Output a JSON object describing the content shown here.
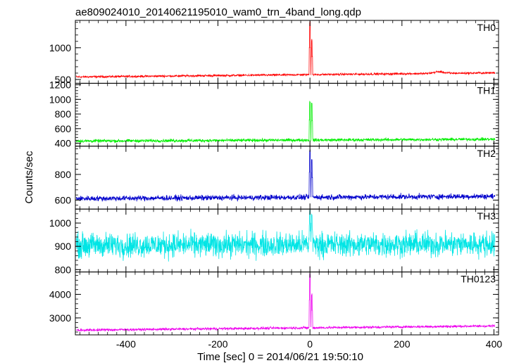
{
  "chart_data": {
    "type": "line",
    "title": "ae809024010_20140621195010_wam0_trn_4band_long.qdp",
    "xlabel": "Time [sec] 0 = 2014/06/21 19:50:10",
    "ylabel": "Counts/sec",
    "xlim": [
      -510,
      410
    ],
    "xticks": [
      -400,
      -200,
      0,
      200,
      400
    ],
    "grid": false,
    "panels": [
      {
        "name": "TH0",
        "color": "#ff0000",
        "ylim": [
          440,
          1430
        ],
        "yticks": [
          500,
          1000
        ],
        "baseline_start": 540,
        "baseline_end": 605,
        "noise": 14,
        "spikes": [
          [
            0,
            1430
          ],
          [
            4,
            1150
          ]
        ],
        "bumps": [
          [
            280,
            25
          ]
        ]
      },
      {
        "name": "TH1",
        "color": "#00ee00",
        "ylim": [
          360,
          1220
        ],
        "yticks": [
          400,
          600,
          800,
          1000,
          1200
        ],
        "baseline_start": 430,
        "baseline_end": 455,
        "noise": 18,
        "spikes": [
          [
            0,
            1000
          ],
          [
            4,
            960
          ]
        ],
        "bumps": []
      },
      {
        "name": "TH2",
        "color": "#0000cc",
        "ylim": [
          530,
          1020
        ],
        "yticks": [
          600,
          800
        ],
        "baseline_start": 612,
        "baseline_end": 630,
        "noise": 18,
        "spikes": [
          [
            0,
            1010
          ],
          [
            4,
            935
          ]
        ],
        "bumps": []
      },
      {
        "name": "TH3",
        "color": "#00e5e5",
        "ylim": [
          790,
          1060
        ],
        "yticks": [
          800,
          900,
          1000
        ],
        "baseline_start": 905,
        "baseline_end": 910,
        "noise": 45,
        "spikes": [
          [
            0,
            1060
          ],
          [
            4,
            1040
          ]
        ],
        "bumps": []
      },
      {
        "name": "TH0123",
        "color": "#ee00ee",
        "ylim": [
          2280,
          4950
        ],
        "yticks": [
          3000,
          4000
        ],
        "baseline_start": 2480,
        "baseline_end": 2660,
        "noise": 45,
        "spikes": [
          [
            0,
            4950
          ],
          [
            4,
            4050
          ]
        ],
        "bumps": []
      }
    ]
  }
}
